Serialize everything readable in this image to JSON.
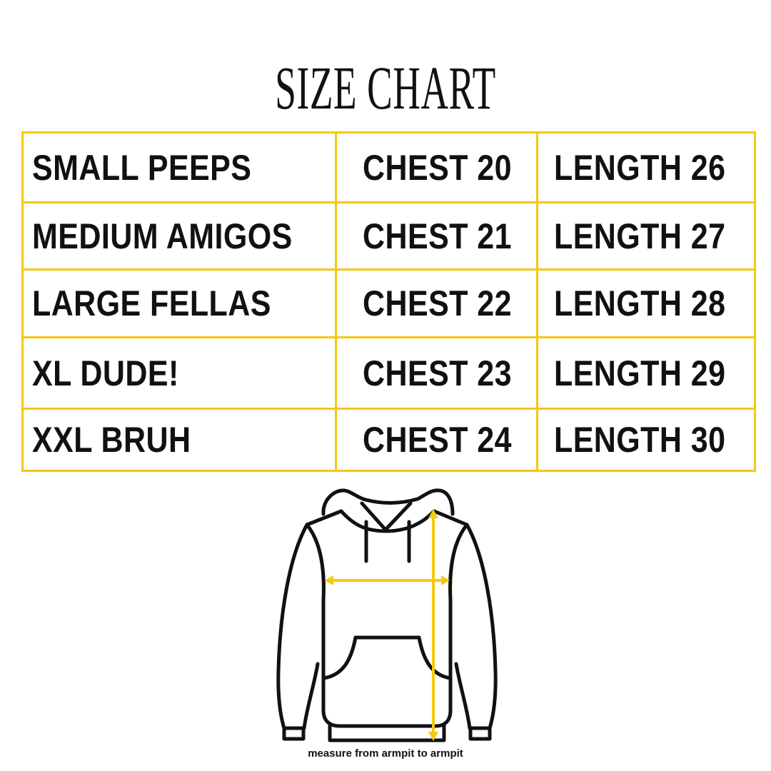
{
  "title": "SIZE CHART",
  "accent_color": "#F5C814",
  "rows": [
    {
      "size": "SMALL PEEPS",
      "chest": "CHEST 20",
      "length": "LENGTH 26"
    },
    {
      "size": "MEDIUM AMIGOS",
      "chest": "CHEST 21",
      "length": "LENGTH 27"
    },
    {
      "size": "LARGE FELLAS",
      "chest": "CHEST 22",
      "length": "LENGTH 28"
    },
    {
      "size": "XL DUDE!",
      "chest": "CHEST 23",
      "length": "LENGTH 29"
    },
    {
      "size": "XXL BRUH",
      "chest": "CHEST 24",
      "length": "LENGTH 30"
    }
  ],
  "illustration": "hoodie-measurement-diagram",
  "caption": "measure from armpit to armpit"
}
